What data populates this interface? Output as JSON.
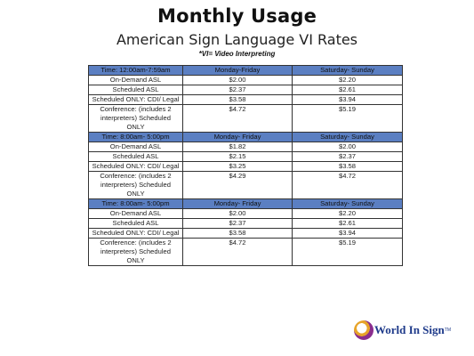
{
  "header": {
    "title": "Monthly Usage",
    "subtitle": "American Sign Language VI Rates",
    "note": "*VI= Video Interpreting"
  },
  "sections": [
    {
      "time": "Time: 12:00am-7:59am",
      "col_weekday": "Monday-Friday",
      "col_weekend": "Saturday- Sunday",
      "rows": [
        {
          "label": "On-Demand ASL",
          "weekday": "$2.00",
          "weekend": "$2.20"
        },
        {
          "label": "Scheduled ASL",
          "weekday": "$2.37",
          "weekend": "$2.61"
        },
        {
          "label": "Scheduled ONLY: CDI/ Legal",
          "weekday": "$3.58",
          "weekend": "$3.94"
        },
        {
          "label": "Conference: (includes 2 interpreters) Scheduled ONLY",
          "weekday": "$4.72",
          "weekend": "$5.19"
        }
      ]
    },
    {
      "time": "Time: 8:00am- 5:00pm",
      "col_weekday": "Monday- Friday",
      "col_weekend": "Saturday- Sunday",
      "rows": [
        {
          "label": "On-Demand ASL",
          "weekday": "$1.82",
          "weekend": "$2.00"
        },
        {
          "label": "Scheduled ASL",
          "weekday": "$2.15",
          "weekend": "$2.37"
        },
        {
          "label": "Scheduled ONLY: CDI/ Legal",
          "weekday": "$3.25",
          "weekend": "$3.58"
        },
        {
          "label": "Conference: (includes 2 interpreters) Scheduled ONLY",
          "weekday": "$4.29",
          "weekend": "$4.72"
        }
      ]
    },
    {
      "time": "Time: 8:00am- 5:00pm",
      "col_weekday": "Monday- Friday",
      "col_weekend": "Saturday- Sunday",
      "rows": [
        {
          "label": "On-Demand ASL",
          "weekday": "$2.00",
          "weekend": "$2.20"
        },
        {
          "label": "Scheduled ASL",
          "weekday": "$2.37",
          "weekend": "$2.61"
        },
        {
          "label": "Scheduled ONLY:  CDI/ Legal",
          "weekday": "$3.58",
          "weekend": "$3.94"
        },
        {
          "label": "Conference: (includes 2 interpreters) Scheduled ONLY",
          "weekday": "$4.72",
          "weekend": "$5.19"
        }
      ]
    }
  ],
  "footer": {
    "logo_text": "World In Sign",
    "logo_tm": "TM"
  },
  "colors": {
    "header_fill": "#5b7fc2",
    "logo_text": "#1e3a8a"
  }
}
